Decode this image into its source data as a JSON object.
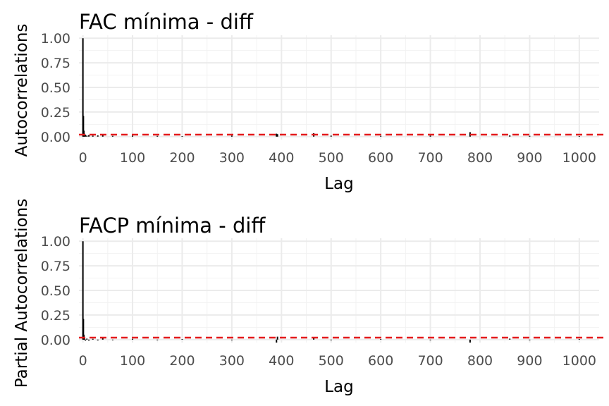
{
  "chart_data": [
    {
      "type": "bar",
      "title": "FAC mínima - diff",
      "xlabel": "Lag",
      "ylabel": "Autocorrelations",
      "xlim": [
        -8,
        1040
      ],
      "ylim": [
        -0.03,
        1.03
      ],
      "x_ticks": [
        0,
        100,
        200,
        300,
        400,
        500,
        600,
        700,
        800,
        900,
        1000
      ],
      "x_tick_labels": [
        "0",
        "100",
        "200",
        "300",
        "400",
        "500",
        "600",
        "700",
        "800",
        "900",
        "1000"
      ],
      "y_ticks": [
        0.0,
        0.25,
        0.5,
        0.75,
        1.0
      ],
      "y_tick_labels": [
        "0.00",
        "0.25",
        "0.50",
        "0.75",
        "1.00"
      ],
      "reference_line": {
        "y": 0.02,
        "color": "#e41a1c",
        "style": "dashed"
      },
      "grid": true,
      "x": [
        0,
        1,
        2,
        3,
        5,
        8,
        12,
        20,
        30,
        40,
        60,
        100,
        150,
        200,
        300,
        390,
        392,
        465,
        500,
        600,
        700,
        780,
        860,
        900,
        1000
      ],
      "values": [
        1.0,
        0.21,
        0.06,
        0.03,
        0.02,
        0.01,
        0.015,
        0.01,
        0.012,
        0.02,
        0.008,
        0.01,
        0.008,
        0.006,
        0.01,
        0.03,
        0.025,
        0.035,
        0.01,
        0.008,
        0.01,
        0.045,
        0.012,
        0.008,
        0.006
      ]
    },
    {
      "type": "bar",
      "title": "FACP mínima - diff",
      "xlabel": "Lag",
      "ylabel": "Partial Autocorrelations",
      "xlim": [
        -8,
        1040
      ],
      "ylim": [
        -0.03,
        1.03
      ],
      "x_ticks": [
        0,
        100,
        200,
        300,
        400,
        500,
        600,
        700,
        800,
        900,
        1000
      ],
      "x_tick_labels": [
        "0",
        "100",
        "200",
        "300",
        "400",
        "500",
        "600",
        "700",
        "800",
        "900",
        "1000"
      ],
      "y_ticks": [
        0.0,
        0.25,
        0.5,
        0.75,
        1.0
      ],
      "y_tick_labels": [
        "0.00",
        "0.25",
        "0.50",
        "0.75",
        "1.00"
      ],
      "reference_line": {
        "y": 0.02,
        "color": "#e41a1c",
        "style": "dashed"
      },
      "grid": true,
      "x": [
        0,
        1,
        2,
        3,
        5,
        8,
        12,
        20,
        30,
        40,
        60,
        100,
        150,
        200,
        300,
        390,
        392,
        465,
        500,
        600,
        700,
        780,
        860,
        900,
        1000
      ],
      "values": [
        1.0,
        0.21,
        0.05,
        0.02,
        -0.01,
        0.01,
        -0.01,
        0.008,
        -0.008,
        0.015,
        -0.006,
        0.008,
        -0.006,
        0.006,
        -0.006,
        -0.03,
        0.03,
        0.02,
        -0.006,
        0.006,
        -0.006,
        -0.03,
        0.01,
        -0.006,
        0.006
      ]
    }
  ]
}
